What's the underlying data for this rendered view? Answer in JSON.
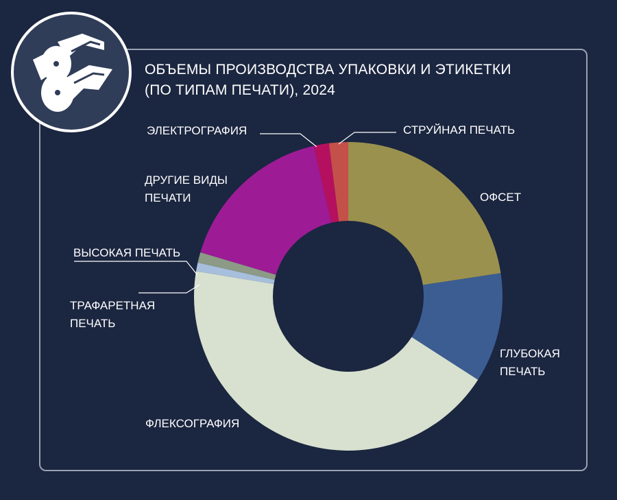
{
  "header": {
    "title_line1": "ОБЪЕМЫ ПРОИЗВОДСТВА УПАКОВКИ И ЭТИКЕТКИ",
    "title_line2": "(ПО ТИПАМ ПЕЧАТИ), 2024",
    "logo_icon": "paper-rolls-icon"
  },
  "chart_data": {
    "type": "pie",
    "variant": "donut",
    "title": "ОБЪЕМЫ ПРОИЗВОДСТВА УПАКОВКИ И ЭТИКЕТКИ (ПО ТИПАМ ПЕЧАТИ), 2024",
    "value_unit": "share, %",
    "start": "12 o'clock, clockwise",
    "slices": [
      {
        "label": "ОФСЕТ",
        "label_lines": [
          "ОФСЕТ"
        ],
        "value": 22.6,
        "color": "#9a914e"
      },
      {
        "label": "ГЛУБОКАЯ ПЕЧАТЬ",
        "label_lines": [
          "ГЛУБОКАЯ",
          "ПЕЧАТЬ"
        ],
        "value": 11.5,
        "color": "#3b5d92"
      },
      {
        "label": "ФЛЕКСОГРАФИЯ",
        "label_lines": [
          "ФЛЕКСОГРАФИЯ"
        ],
        "value": 43.5,
        "color": "#d8e1cf"
      },
      {
        "label": "ТРАФАРЕТНАЯ ПЕЧАТЬ",
        "label_lines": [
          "ТРАФАРЕТНАЯ",
          "ПЕЧАТЬ"
        ],
        "value": 0.9,
        "color": "#a7bfdc"
      },
      {
        "label": "ВЫСОКАЯ ПЕЧАТЬ",
        "label_lines": [
          "ВЫСОКАЯ ПЕЧАТЬ"
        ],
        "value": 1.1,
        "color": "#8c9a86"
      },
      {
        "label": "ДРУГИЕ ВИДЫ ПЕЧАТИ",
        "label_lines": [
          "ДРУГИЕ ВИДЫ",
          "ПЕЧАТИ"
        ],
        "value": 16.8,
        "color": "#9e1b96"
      },
      {
        "label": "ЭЛЕКТРОГРАФИЯ",
        "label_lines": [
          "ЭЛЕКТРОГРАФИЯ"
        ],
        "value": 1.6,
        "color": "#b5105f"
      },
      {
        "label": "СТРУЙНАЯ ПЕЧАТЬ",
        "label_lines": [
          "СТРУЙНАЯ ПЕЧАТЬ"
        ],
        "value": 2.0,
        "color": "#c4504a"
      }
    ]
  }
}
